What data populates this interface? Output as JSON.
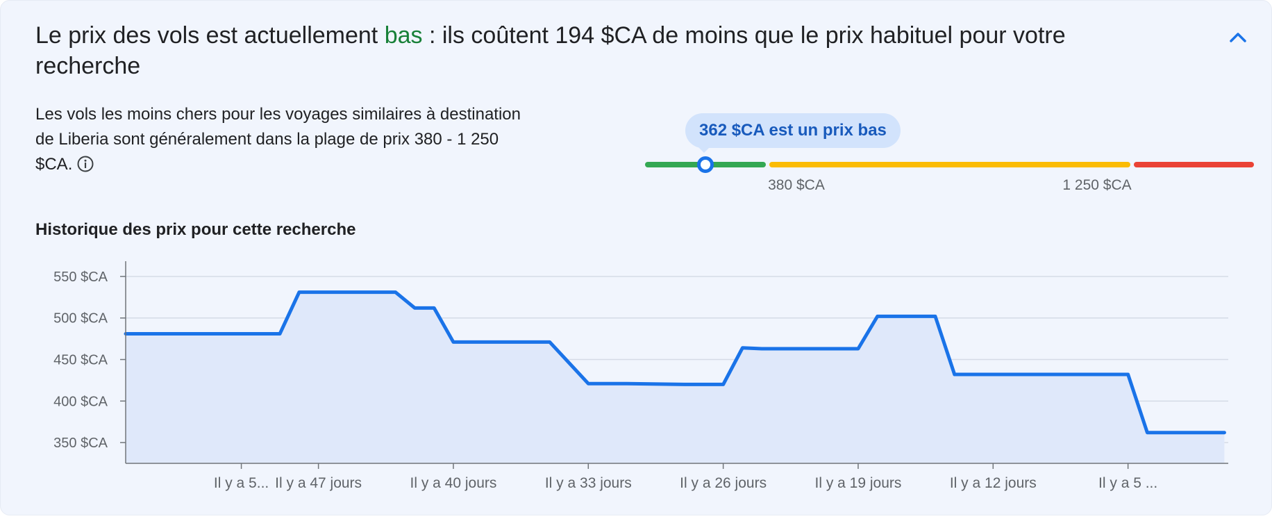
{
  "headline": {
    "before": "Le prix des vols est actuellement ",
    "highlight": "bas",
    "after": " : ils coûtent 194 $CA de moins que le prix habituel pour votre recherche"
  },
  "description": "Les vols les moins chers pour les voyages similaires à destination de Liberia sont généralement dans la plage de prix 380 - 1 250 $CA.",
  "price_indicator": {
    "tooltip": "362 $CA est un prix bas",
    "current_price": 362,
    "range_low": 380,
    "range_high": 1250,
    "low_label": "380 $CA",
    "high_label": "1 250 $CA",
    "colors": {
      "low": "#34a853",
      "typical": "#fbbc04",
      "high": "#ea4335",
      "marker": "#1a73e8"
    }
  },
  "history_title": "Historique des prix pour cette recherche",
  "icons": {
    "collapse": "chevron-up-icon",
    "info": "info-icon"
  },
  "chart_data": {
    "type": "area",
    "title": "",
    "xlabel": "",
    "ylabel": "",
    "ylim": [
      325,
      560
    ],
    "yticks": [
      350,
      400,
      450,
      500,
      550
    ],
    "ytick_labels": [
      "350 $CA",
      "400 $CA",
      "450 $CA",
      "500 $CA",
      "550 $CA"
    ],
    "xticks": [
      51,
      47,
      40,
      33,
      26,
      19,
      12,
      5
    ],
    "xtick_labels": [
      "Il y a 5...",
      "Il y a 47 jours",
      "Il y a 40 jours",
      "Il y a 33 jours",
      "Il y a 26 jours",
      "Il y a 19 jours",
      "Il y a 12 jours",
      "Il y a 5 ..."
    ],
    "xlim": [
      57,
      -0.2
    ],
    "grid": true,
    "line_color": "#1a73e8",
    "fill_color": "#dfe8fa",
    "series": [
      {
        "x": [
          57,
          49,
          48,
          43,
          42,
          41,
          40,
          37,
          36,
          35,
          33,
          32,
          31,
          28,
          27,
          26,
          25,
          24,
          19,
          18,
          17,
          15,
          14,
          13,
          6,
          5,
          4,
          3,
          2,
          1,
          0
        ],
        "values": [
          481,
          481,
          531,
          531,
          512,
          512,
          471,
          471,
          471,
          471,
          421,
          421,
          421,
          420,
          420,
          420,
          464,
          463,
          463,
          502,
          502,
          502,
          432,
          432,
          432,
          432,
          362,
          362,
          362,
          362,
          362
        ]
      }
    ]
  }
}
